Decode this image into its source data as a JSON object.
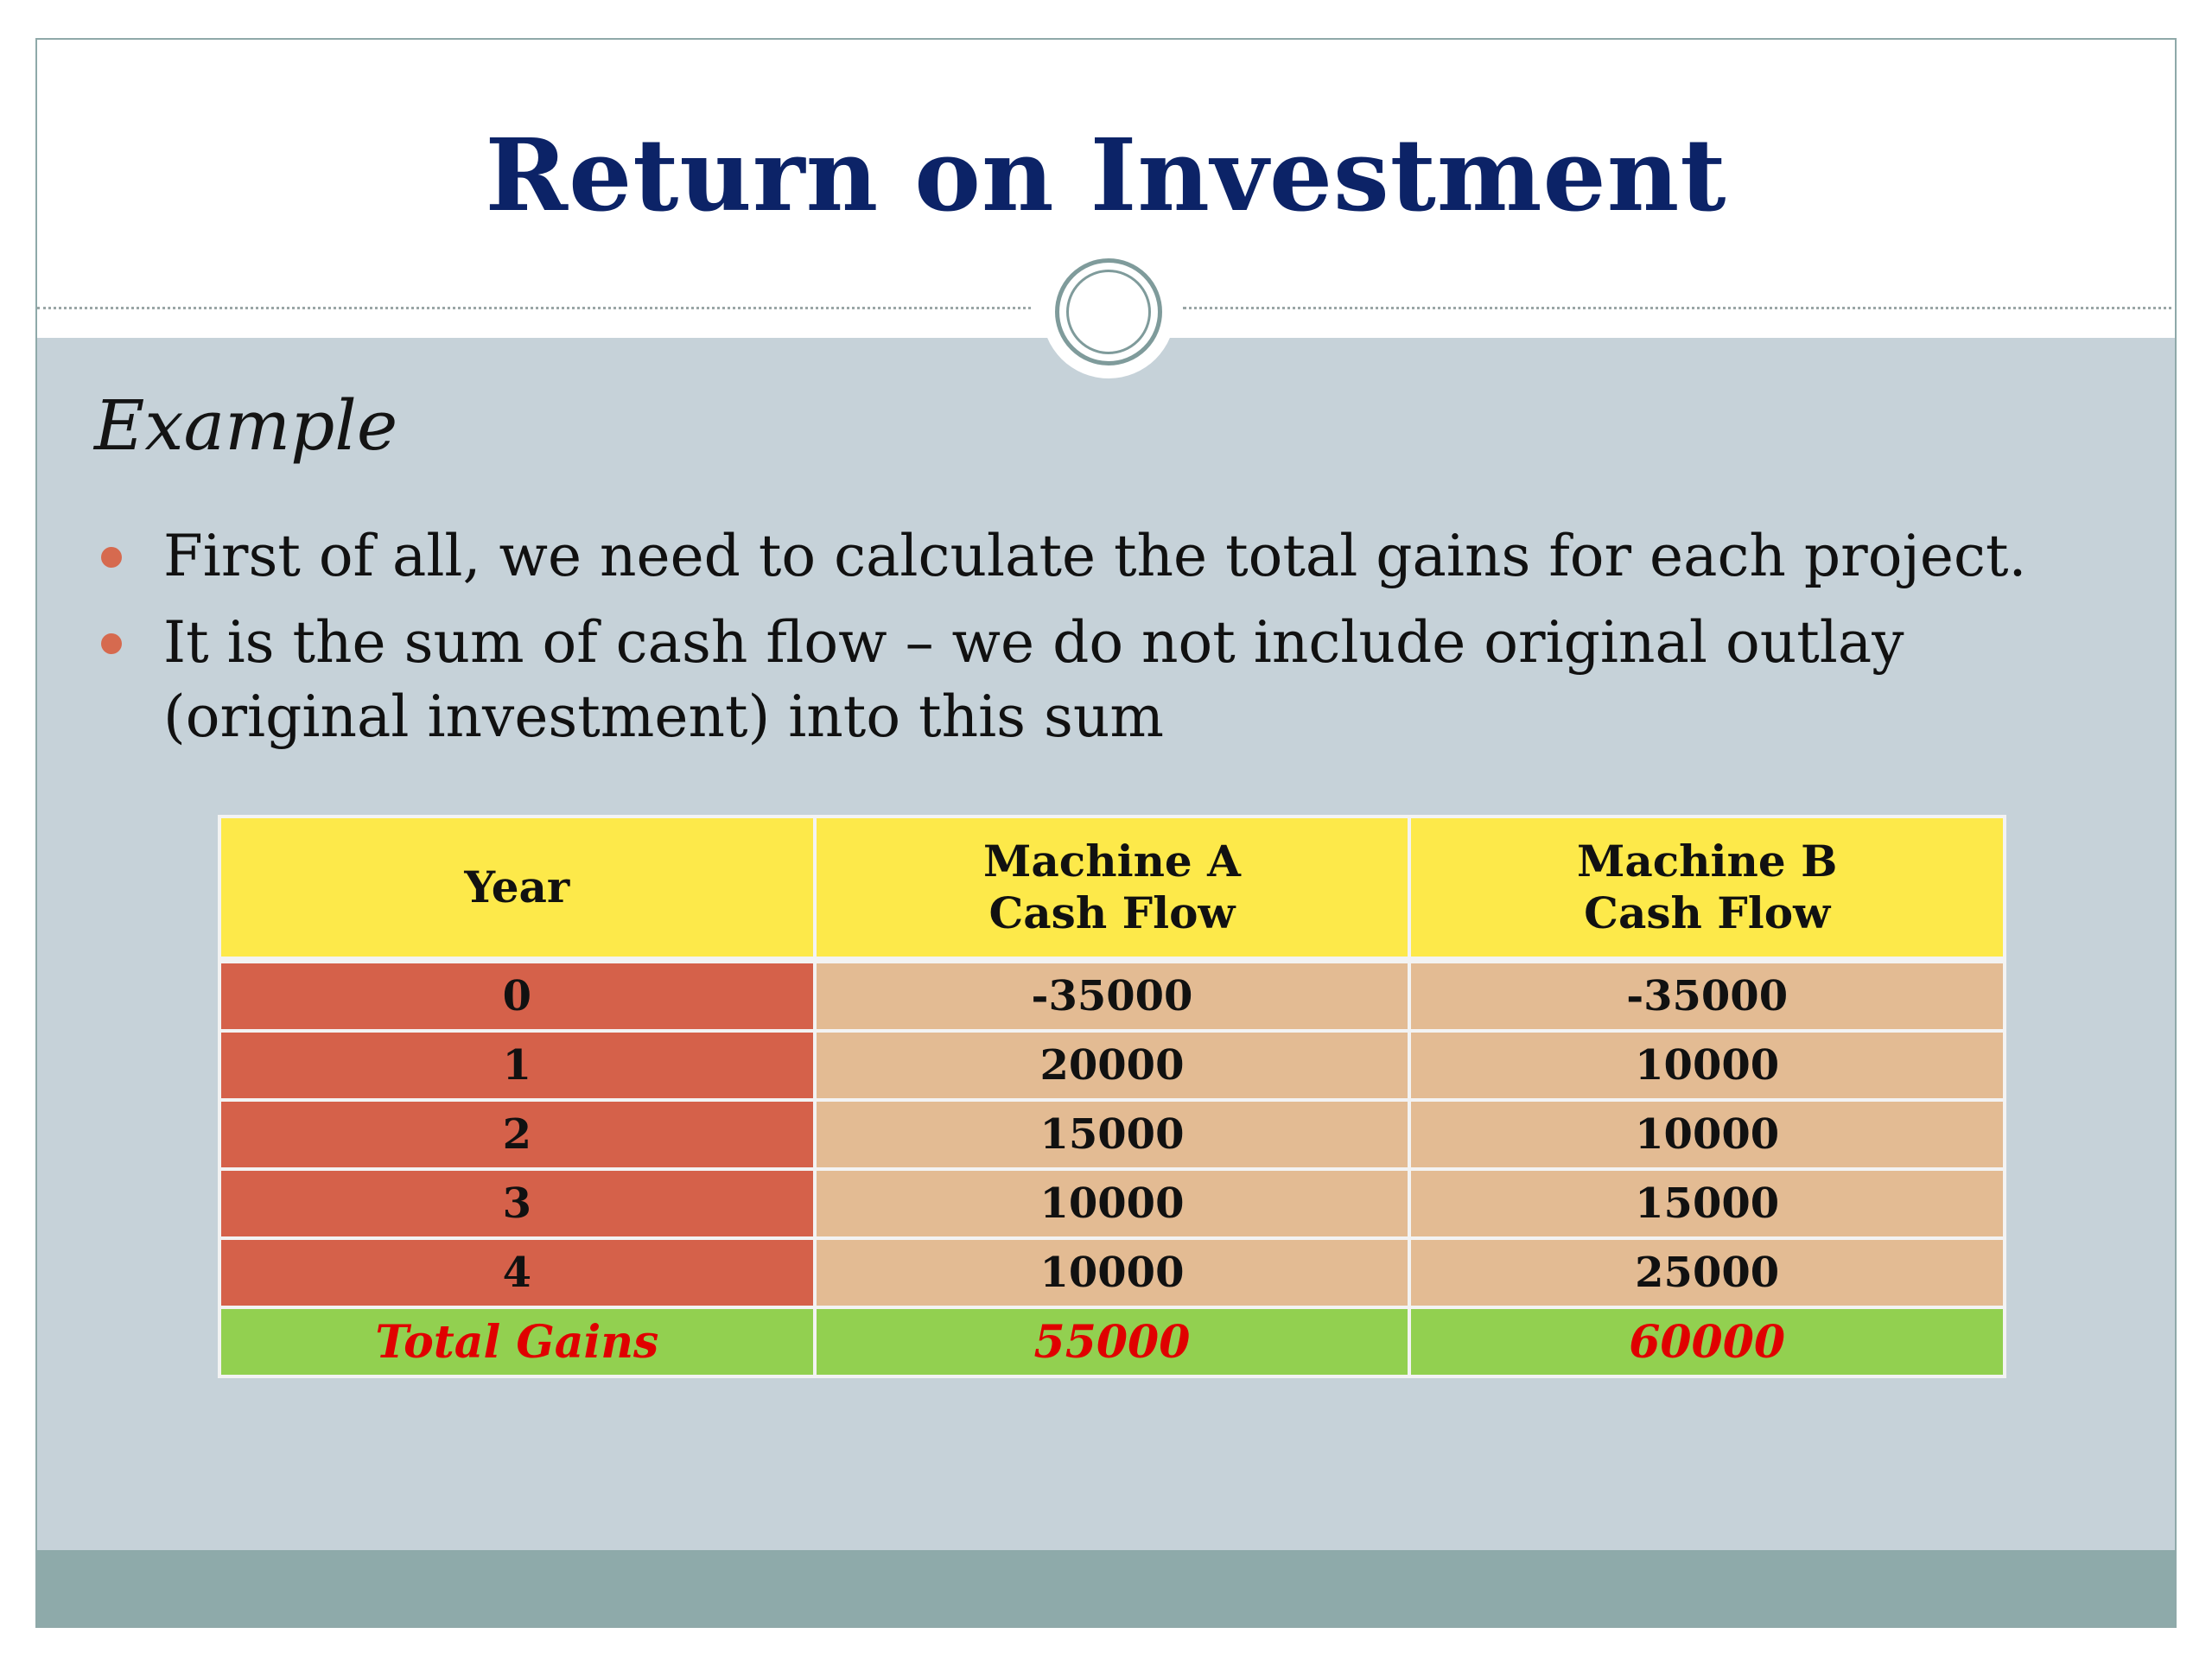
{
  "slide": {
    "title": "Return on Investment",
    "subheading": "Example",
    "bullets": [
      "First of all, we need to calculate the total gains for each project.",
      "It is the sum of cash flow – we do not include original outlay (original investment) into this sum"
    ]
  },
  "table": {
    "headers": {
      "year": "Year",
      "machine_a_line1": "Machine A",
      "machine_a_line2": "Cash Flow",
      "machine_b_line1": "Machine B",
      "machine_b_line2": "Cash Flow"
    },
    "rows": [
      {
        "year": "0",
        "machine_a": "-35000",
        "machine_b": "-35000"
      },
      {
        "year": "1",
        "machine_a": "20000",
        "machine_b": "10000"
      },
      {
        "year": "2",
        "machine_a": "15000",
        "machine_b": "10000"
      },
      {
        "year": "3",
        "machine_a": "10000",
        "machine_b": "15000"
      },
      {
        "year": "4",
        "machine_a": "10000",
        "machine_b": "25000"
      }
    ],
    "total": {
      "label": "Total Gains",
      "machine_a": "55000",
      "machine_b": "60000"
    }
  },
  "colors": {
    "title": "#0c2367",
    "background": "#c6d2d9",
    "header_fill": "#fde94a",
    "year_fill": "#d5614a",
    "value_fill": "#e3bb93",
    "total_fill": "#92d050",
    "total_text": "#e00000",
    "bullet": "#d66a4f",
    "footer": "#8eaaaa"
  }
}
